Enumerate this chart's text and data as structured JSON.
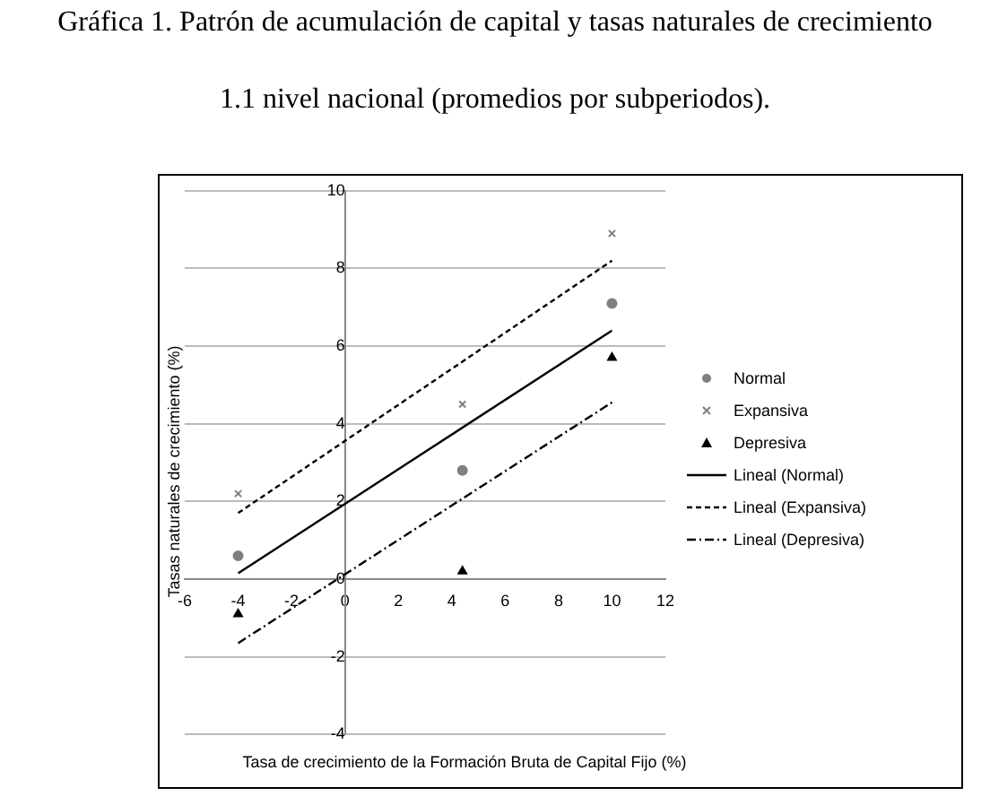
{
  "chart_data": {
    "type": "scatter",
    "title": "Gráfica 1. Patrón de acumulación de capital y tasas naturales de crecimiento",
    "subtitle": "1.1 nivel nacional (promedios por subperiodos).",
    "xlabel": "Tasa de crecimiento de la Formación Bruta de Capital Fijo (%)",
    "ylabel": "Tasas naturales de crecimiento (%)",
    "xlim": [
      -6,
      12
    ],
    "xticks": [
      -6,
      -4,
      -2,
      0,
      2,
      4,
      6,
      8,
      10,
      12
    ],
    "ylim": [
      -4,
      10
    ],
    "yticks": [
      -4,
      -2,
      0,
      2,
      4,
      6,
      8,
      10
    ],
    "grid": "y",
    "legend": "right",
    "series": [
      {
        "name": "Normal",
        "color": "#7f7f7f",
        "marker": "circle",
        "x": [
          -4,
          4.4,
          10
        ],
        "values": [
          0.6,
          2.8,
          7.1
        ]
      },
      {
        "name": "Expansiva",
        "color": "#7f7f7f",
        "marker": "cross",
        "x": [
          -4,
          4.4,
          10
        ],
        "values": [
          2.2,
          4.5,
          8.9
        ]
      },
      {
        "name": "Depresiva",
        "color": "#000000",
        "marker": "triangle",
        "x": [
          -4,
          4.4,
          10
        ],
        "values": [
          -0.9,
          0.2,
          5.7
        ]
      },
      {
        "name": "Lineal (Normal)",
        "type": "line",
        "color": "#000000",
        "line_style": "solid",
        "x": [
          -4,
          10
        ],
        "values": [
          0.15,
          6.4
        ]
      },
      {
        "name": "Lineal (Expansiva)",
        "type": "line",
        "color": "#000000",
        "line_style": "dashed",
        "x": [
          -4,
          10
        ],
        "values": [
          1.7,
          8.2
        ]
      },
      {
        "name": "Lineal (Depresiva)",
        "type": "line",
        "color": "#000000",
        "line_style": "dotted",
        "x": [
          -4,
          10
        ],
        "values": [
          -1.65,
          4.55
        ]
      }
    ]
  }
}
